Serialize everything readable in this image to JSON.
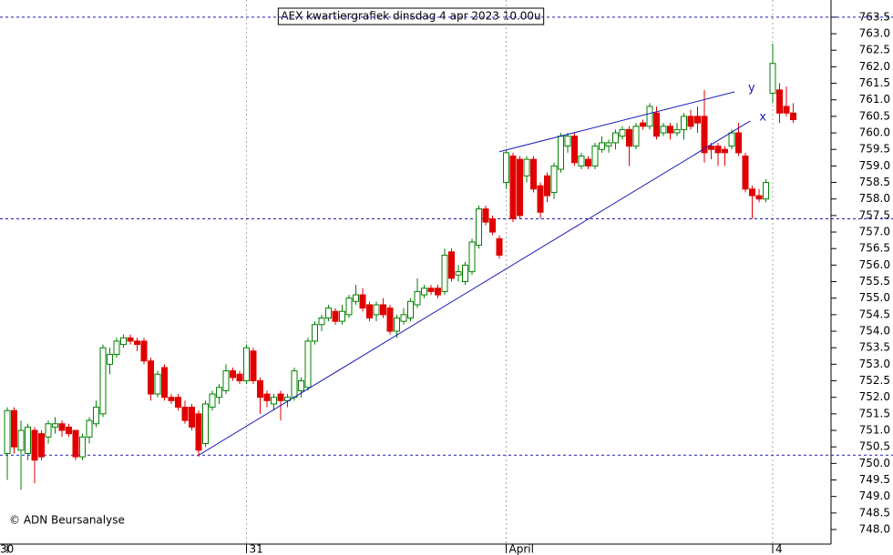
{
  "chart_data": {
    "type": "candlestick",
    "title": "AEX kwartiergrafiek dinsdag 4 apr 2023 10.00u",
    "credit": "© ADN Beursanalyse",
    "categories": [
      "30",
      null,
      null,
      null,
      null,
      null,
      null,
      null,
      null,
      null,
      null,
      null,
      null,
      null,
      null,
      null,
      null,
      null,
      null,
      null,
      null,
      null,
      null,
      null,
      null,
      null,
      null,
      null,
      null,
      null,
      null,
      null,
      null,
      null,
      null,
      "31",
      null,
      null,
      null,
      null,
      null,
      null,
      null,
      null,
      null,
      null,
      null,
      null,
      null,
      null,
      null,
      null,
      null,
      null,
      null,
      null,
      null,
      null,
      null,
      null,
      null,
      null,
      null,
      null,
      null,
      null,
      null,
      null,
      null,
      null,
      null,
      null,
      null,
      "April",
      null,
      null,
      null,
      null,
      null,
      null,
      null,
      null,
      null,
      null,
      null,
      null,
      null,
      null,
      null,
      null,
      null,
      null,
      null,
      null,
      null,
      null,
      null,
      null,
      null,
      null,
      null,
      null,
      null,
      null,
      null,
      null,
      null,
      null,
      null,
      null,
      null,
      null,
      "4",
      null,
      null,
      null
    ],
    "open": [
      750.3,
      751.6,
      750.4,
      750.3,
      751.0,
      750.9,
      750.8,
      751.1,
      751.2,
      751.1,
      751.0,
      750.2,
      750.8,
      751.2,
      751.5,
      753.0,
      753.3,
      753.6,
      753.8,
      753.7,
      753.7,
      753.1,
      752.1,
      752.9,
      752.0,
      752.0,
      751.7,
      751.7,
      751.5,
      750.6,
      751.7,
      752.0,
      752.2,
      752.8,
      752.7,
      752.5,
      753.4,
      752.5,
      752.1,
      751.8,
      752.1,
      751.9,
      752.0,
      752.2,
      752.3,
      753.7,
      754.2,
      754.4,
      754.6,
      754.3,
      754.5,
      754.9,
      755.1,
      754.8,
      754.5,
      754.8,
      754.7,
      754.0,
      754.3,
      754.4,
      754.8,
      755.1,
      755.3,
      755.3,
      755.2,
      756.4,
      755.7,
      755.5,
      755.8,
      756.6,
      757.7,
      757.4,
      756.8,
      758.5,
      759.3,
      759.2,
      758.7,
      759.2,
      758.4,
      758.7,
      758.2,
      758.9,
      759.6,
      759.9,
      759.0,
      759.2,
      759.0,
      759.5,
      759.6,
      759.7,
      759.9,
      760.1,
      759.6,
      760.3,
      760.2,
      760.6,
      760.0,
      760.2,
      760.0,
      760.1,
      760.5,
      760.5,
      760.5,
      759.6,
      759.6,
      759.5,
      759.6,
      760.0,
      759.3,
      758.3,
      758.1,
      758.0,
      761.2,
      761.3,
      760.8,
      760.6
    ],
    "high": [
      751.7,
      751.7,
      751.3,
      751.2,
      751.1,
      751.0,
      751.3,
      751.4,
      751.3,
      751.2,
      751.0,
      750.9,
      751.4,
      751.9,
      753.6,
      753.5,
      753.8,
      753.9,
      753.9,
      753.8,
      753.8,
      753.2,
      752.8,
      753.0,
      752.1,
      752.1,
      751.9,
      751.8,
      751.6,
      751.9,
      752.2,
      752.4,
      753.0,
      752.9,
      752.8,
      753.6,
      753.5,
      752.6,
      752.2,
      752.1,
      752.2,
      752.1,
      752.9,
      752.6,
      753.8,
      754.3,
      754.5,
      754.8,
      754.7,
      754.8,
      755.1,
      755.4,
      755.3,
      754.9,
      754.9,
      755.0,
      754.8,
      754.5,
      754.7,
      755.0,
      755.6,
      755.4,
      755.4,
      755.4,
      756.5,
      756.5,
      756.0,
      756.1,
      756.8,
      757.8,
      757.8,
      757.5,
      756.9,
      759.5,
      759.4,
      759.3,
      759.3,
      759.3,
      758.5,
      758.8,
      759.1,
      760.0,
      760.0,
      760.0,
      759.4,
      759.3,
      759.7,
      759.9,
      759.8,
      760.1,
      760.2,
      760.2,
      760.3,
      760.4,
      760.9,
      760.8,
      760.3,
      760.3,
      760.3,
      760.6,
      760.7,
      760.8,
      761.3,
      759.7,
      759.7,
      759.6,
      760.1,
      760.3,
      759.4,
      758.4,
      758.3,
      758.6,
      762.7,
      761.5,
      761.4,
      760.9
    ],
    "low": [
      749.5,
      750.3,
      749.2,
      750.1,
      749.4,
      750.1,
      750.6,
      750.9,
      750.8,
      750.8,
      750.1,
      750.1,
      750.6,
      751.1,
      751.4,
      752.7,
      753.2,
      753.5,
      753.6,
      753.4,
      753.0,
      751.9,
      752.0,
      751.9,
      751.8,
      751.6,
      751.2,
      751.0,
      750.2,
      750.5,
      751.6,
      751.8,
      752.1,
      752.5,
      752.4,
      752.4,
      752.4,
      751.5,
      751.7,
      751.6,
      751.3,
      751.7,
      751.9,
      752.0,
      752.2,
      753.6,
      754.0,
      754.3,
      754.2,
      754.2,
      754.4,
      754.8,
      754.6,
      754.3,
      754.3,
      754.4,
      753.9,
      753.8,
      754.2,
      754.3,
      754.7,
      755.0,
      755.1,
      755.0,
      755.1,
      755.5,
      755.5,
      755.4,
      755.7,
      756.5,
      757.2,
      756.9,
      756.2,
      758.3,
      757.3,
      757.4,
      758.5,
      758.2,
      757.4,
      757.9,
      758.0,
      758.8,
      759.4,
      759.0,
      758.9,
      758.9,
      758.9,
      759.4,
      759.4,
      759.5,
      759.8,
      759.0,
      759.5,
      760.1,
      760.1,
      759.8,
      759.9,
      759.8,
      759.9,
      759.8,
      760.1,
      760.0,
      759.1,
      759.2,
      759.0,
      759.0,
      759.5,
      759.3,
      758.2,
      757.4,
      757.9,
      757.9,
      760.9,
      760.3,
      760.5,
      760.3
    ],
    "close": [
      751.6,
      750.5,
      751.0,
      751.1,
      750.1,
      750.2,
      751.2,
      751.2,
      751.0,
      750.9,
      750.2,
      750.8,
      751.3,
      751.7,
      753.5,
      753.3,
      753.7,
      753.8,
      753.7,
      753.6,
      753.1,
      752.1,
      752.7,
      752.0,
      751.9,
      751.7,
      751.3,
      751.1,
      750.4,
      751.8,
      752.1,
      752.3,
      752.8,
      752.6,
      752.5,
      753.5,
      752.5,
      752.0,
      751.9,
      752.0,
      751.9,
      752.0,
      752.8,
      752.5,
      753.7,
      754.2,
      754.4,
      754.7,
      754.3,
      754.6,
      755.0,
      755.1,
      754.7,
      754.4,
      754.8,
      754.5,
      754.0,
      754.4,
      754.5,
      754.9,
      755.2,
      755.3,
      755.2,
      755.1,
      756.3,
      755.6,
      755.8,
      756.0,
      756.7,
      757.7,
      757.3,
      757.0,
      756.3,
      759.4,
      757.4,
      757.5,
      759.2,
      758.3,
      757.6,
      758.1,
      759.0,
      759.9,
      759.9,
      759.1,
      759.3,
      759.0,
      759.6,
      759.7,
      759.7,
      760.0,
      760.1,
      759.6,
      760.2,
      760.2,
      760.8,
      759.9,
      760.2,
      760.0,
      760.1,
      760.5,
      760.2,
      760.3,
      759.4,
      759.5,
      759.4,
      759.4,
      760.0,
      759.4,
      758.3,
      758.1,
      758.0,
      758.5,
      762.1,
      760.6,
      760.6,
      760.4
    ],
    "up_color": "#008000",
    "down_color": "#e00000",
    "ylim": [
      747.56,
      764.02
    ],
    "yticks": [
      {
        "value": 748,
        "label": "748.0"
      },
      748.5,
      {
        "value": 749,
        "label": "749.0"
      },
      749.5,
      {
        "value": 750,
        "label": "750.0"
      },
      750.5,
      {
        "value": 751,
        "label": "751.0"
      },
      751.5,
      {
        "value": 752,
        "label": "752.0"
      },
      752.5,
      {
        "value": 753,
        "label": "753.0"
      },
      753.5,
      {
        "value": 754,
        "label": "754.0"
      },
      754.5,
      {
        "value": 755,
        "label": "755.0"
      },
      755.5,
      {
        "value": 756,
        "label": "756.0"
      },
      756.5,
      {
        "value": 757,
        "label": "757.0"
      },
      757.5,
      {
        "value": 758,
        "label": "758.0"
      },
      758.5,
      {
        "value": 759,
        "label": "759.0"
      },
      759.5,
      {
        "value": 760,
        "label": "760.0"
      },
      760.5,
      {
        "value": 761,
        "label": "761.0"
      },
      761.5,
      {
        "value": 762,
        "label": "762.0"
      },
      762.5,
      {
        "value": 763,
        "label": "763.0"
      },
      763.5
    ],
    "hlines": [
      763.5,
      750.25,
      757.4
    ],
    "trendlines": [
      {
        "label": "x",
        "x": [
          28,
          108.7
        ],
        "y": [
          750.25,
          760.36
        ]
      },
      {
        "label": "y",
        "x": [
          72,
          106.4
        ],
        "y": [
          759.43,
          761.24
        ]
      }
    ],
    "trend_color": "#1a1ab8"
  }
}
